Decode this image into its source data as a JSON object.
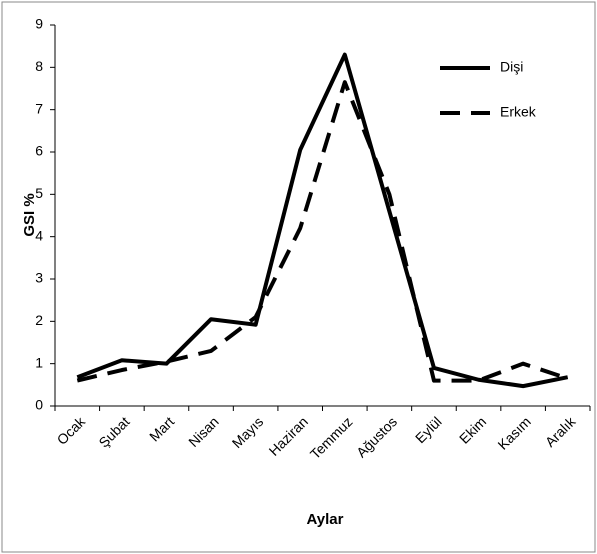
{
  "chart_data": {
    "type": "line",
    "x_label": "Aylar",
    "y_label": "GSI %",
    "categories": [
      "Ocak",
      "Şubat",
      "Mart",
      "Nisan",
      "Mayıs",
      "Haziran",
      "Temmuz",
      "Ağustos",
      "Eylül",
      "Ekim",
      "Kasım",
      "Aralık"
    ],
    "series": [
      {
        "name": "Dişi",
        "color": "#000000",
        "dash": "solid",
        "values": [
          0.68,
          1.08,
          1.0,
          2.05,
          1.92,
          6.05,
          8.3,
          4.6,
          0.9,
          0.62,
          0.47,
          0.68
        ]
      },
      {
        "name": "Erkek",
        "color": "#000000",
        "dash": "dashed",
        "values": [
          0.6,
          0.85,
          1.05,
          1.3,
          2.1,
          4.2,
          7.65,
          5.0,
          0.6,
          0.6,
          1.0,
          0.65
        ]
      }
    ],
    "ylim": [
      0,
      9
    ],
    "yticks": [
      0,
      1,
      2,
      3,
      4,
      5,
      6,
      7,
      8,
      9
    ],
    "grid": false,
    "legend": "upper right"
  }
}
